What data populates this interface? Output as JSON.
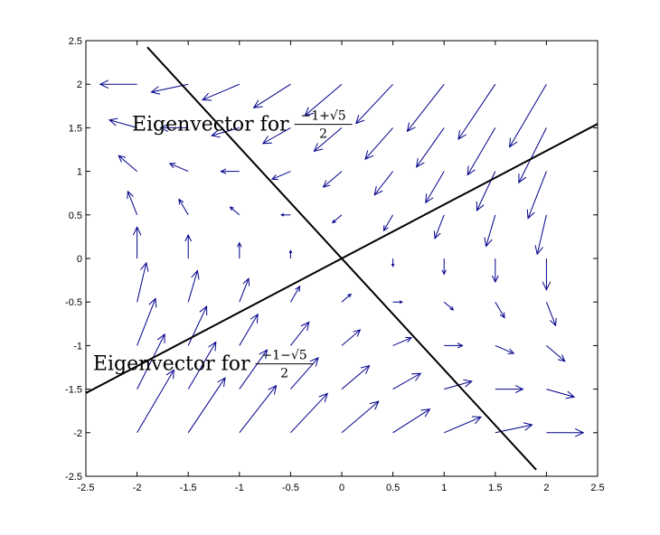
{
  "chart_data": {
    "type": "quiver",
    "title": "",
    "xlabel": "",
    "ylabel": "",
    "xlim": [
      -2.5,
      2.5
    ],
    "ylim": [
      -2.5,
      2.5
    ],
    "xticks": [
      "-2.5",
      "-2",
      "-1.5",
      "-1",
      "-0.5",
      "0",
      "0.5",
      "1",
      "1.5",
      "2",
      "2.5"
    ],
    "yticks": [
      "2.5",
      "2",
      "1.5",
      "1",
      "0.5",
      "0",
      "-0.5",
      "-1",
      "-1.5",
      "-2",
      "-2.5"
    ],
    "grid": false,
    "arrow_color": "#00008b",
    "line_color": "#000000",
    "vector_field": {
      "x": [
        -2,
        -1.5,
        -1,
        -0.5,
        0,
        0.5,
        1,
        1.5,
        2
      ],
      "y": [
        2,
        1.5,
        1,
        0.5,
        0,
        -0.5,
        -1,
        -1.5,
        -2
      ],
      "dx_formula": "-y",
      "dy_formula": "-x - y",
      "arrow_scale": 0.18
    },
    "lines": [
      {
        "name": "eigenvector_1",
        "x": [
          -2.5,
          2.5
        ],
        "y": [
          -1.545,
          1.545
        ]
      },
      {
        "name": "eigenvector_2",
        "x": [
          -1.9,
          1.9
        ],
        "y": [
          2.425,
          -2.425
        ]
      }
    ],
    "annotations": [
      {
        "id": "eig1",
        "text": "Eigenvector for",
        "numerator": "−1+√5",
        "denominator": "2",
        "x": -2.05,
        "y": 1.55
      },
      {
        "id": "eig2",
        "text": "Eigenvector for",
        "numerator": "−1−√5",
        "denominator": "2",
        "x": -2.43,
        "y": -1.2
      }
    ]
  }
}
